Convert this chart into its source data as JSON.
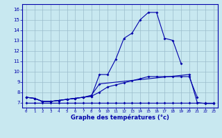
{
  "xlabel": "Graphe des températures (°c)",
  "bg_color": "#c8e8f0",
  "grid_color": "#9bbccc",
  "line_color": "#0000aa",
  "hours": [
    0,
    1,
    2,
    3,
    4,
    5,
    6,
    7,
    8,
    9,
    10,
    11,
    12,
    13,
    14,
    15,
    16,
    17,
    18,
    19,
    20,
    21,
    22,
    23
  ],
  "s1": [
    7.5,
    7.4,
    7.1,
    7.1,
    7.2,
    7.3,
    7.4,
    7.5,
    7.6,
    9.7,
    9.7,
    11.2,
    13.2,
    13.7,
    15.0,
    15.7,
    15.7,
    13.2,
    13.0,
    10.8,
    null,
    null,
    null,
    null
  ],
  "s2_x": [
    0,
    1,
    2,
    3,
    4,
    5,
    6,
    7,
    8,
    9,
    20,
    21,
    22,
    23
  ],
  "s2_y": [
    7.5,
    7.4,
    7.1,
    7.1,
    7.2,
    7.3,
    7.4,
    7.5,
    7.7,
    8.8,
    9.7,
    7.0,
    6.9,
    6.9
  ],
  "s3": [
    7.5,
    7.4,
    7.1,
    7.1,
    7.2,
    7.3,
    7.4,
    7.5,
    7.6,
    8.0,
    8.5,
    8.7,
    8.9,
    9.1,
    9.3,
    9.5,
    9.5,
    9.5,
    9.5,
    9.5,
    9.5,
    7.5,
    null,
    null
  ],
  "s4": [
    7.0,
    7.0,
    7.0,
    7.0,
    7.0,
    7.0,
    7.0,
    7.0,
    7.0,
    7.0,
    7.0,
    7.0,
    7.0,
    7.0,
    7.0,
    7.0,
    7.0,
    7.0,
    7.0,
    7.0,
    7.0,
    7.0,
    7.0,
    7.0
  ],
  "ylim": [
    6.5,
    16.5
  ],
  "yticks": [
    7,
    8,
    9,
    10,
    11,
    12,
    13,
    14,
    15,
    16
  ],
  "xlim": [
    -0.5,
    23.5
  ]
}
